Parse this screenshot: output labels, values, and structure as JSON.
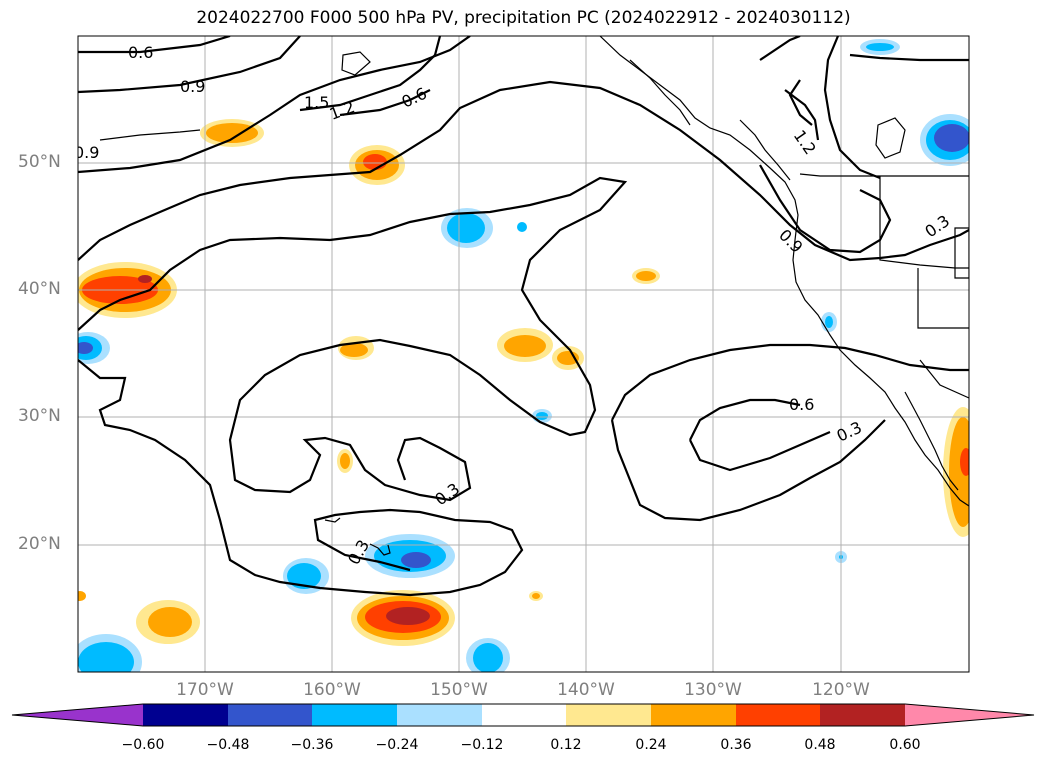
{
  "title": "2024022700 F000 500 hPa PV, precipitation PC (2024022912 - 2024030112)",
  "latitude_labels": [
    "50°N",
    "40°N",
    "30°N",
    "20°N"
  ],
  "longitude_labels": [
    "170°W",
    "160°W",
    "150°W",
    "140°W",
    "130°W",
    "120°W"
  ],
  "contour_labels": [
    "0.6",
    "0.9",
    "1.5",
    "1.2",
    "0.6",
    "0.9",
    "1.2",
    "0.9",
    "0.3",
    "0.6",
    "0.3",
    "0.3",
    "0.3"
  ],
  "colorbar": {
    "ticks": [
      "−0.60",
      "−0.48",
      "−0.36",
      "−0.24",
      "−0.12",
      "0.12",
      "0.24",
      "0.36",
      "0.48",
      "0.60"
    ],
    "colors": [
      "#9933cc",
      "#000090",
      "#3355cc",
      "#00bbff",
      "#aae0ff",
      "#ffffff",
      "#ffe890",
      "#ffa500",
      "#ff4000",
      "#b22222",
      "#ff88aa"
    ]
  }
}
